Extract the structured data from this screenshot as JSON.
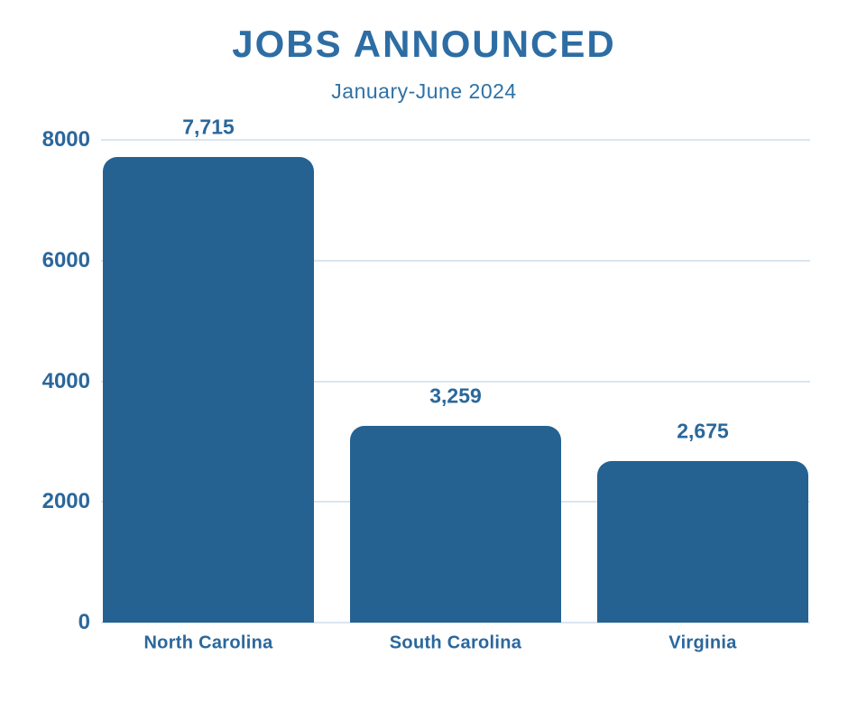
{
  "header": {
    "title": "JOBS ANNOUNCED",
    "subtitle": "January-June 2024"
  },
  "colors": {
    "bar_fill": "#256291",
    "title_text": "#2D6DA4",
    "subtitle_text": "#2E72A6",
    "axis_text": "#2B679C",
    "value_label_text": "#2A689B",
    "gridline": "#DBE5F1",
    "background": "#FFFFFF"
  },
  "chart_data": {
    "type": "bar",
    "title": "JOBS ANNOUNCED",
    "subtitle": "January-June 2024",
    "categories": [
      "North Carolina",
      "South Carolina",
      "Virginia"
    ],
    "values": [
      7715,
      3259,
      2675
    ],
    "value_labels": [
      "7,715",
      "3,259",
      "2,675"
    ],
    "xlabel": "",
    "ylabel": "",
    "ylim": [
      0,
      8000
    ],
    "yticks": [
      0,
      2000,
      4000,
      6000,
      8000
    ],
    "grid": true,
    "gridline_orientation": "horizontal",
    "legend": false,
    "bar_color": "#256291"
  }
}
